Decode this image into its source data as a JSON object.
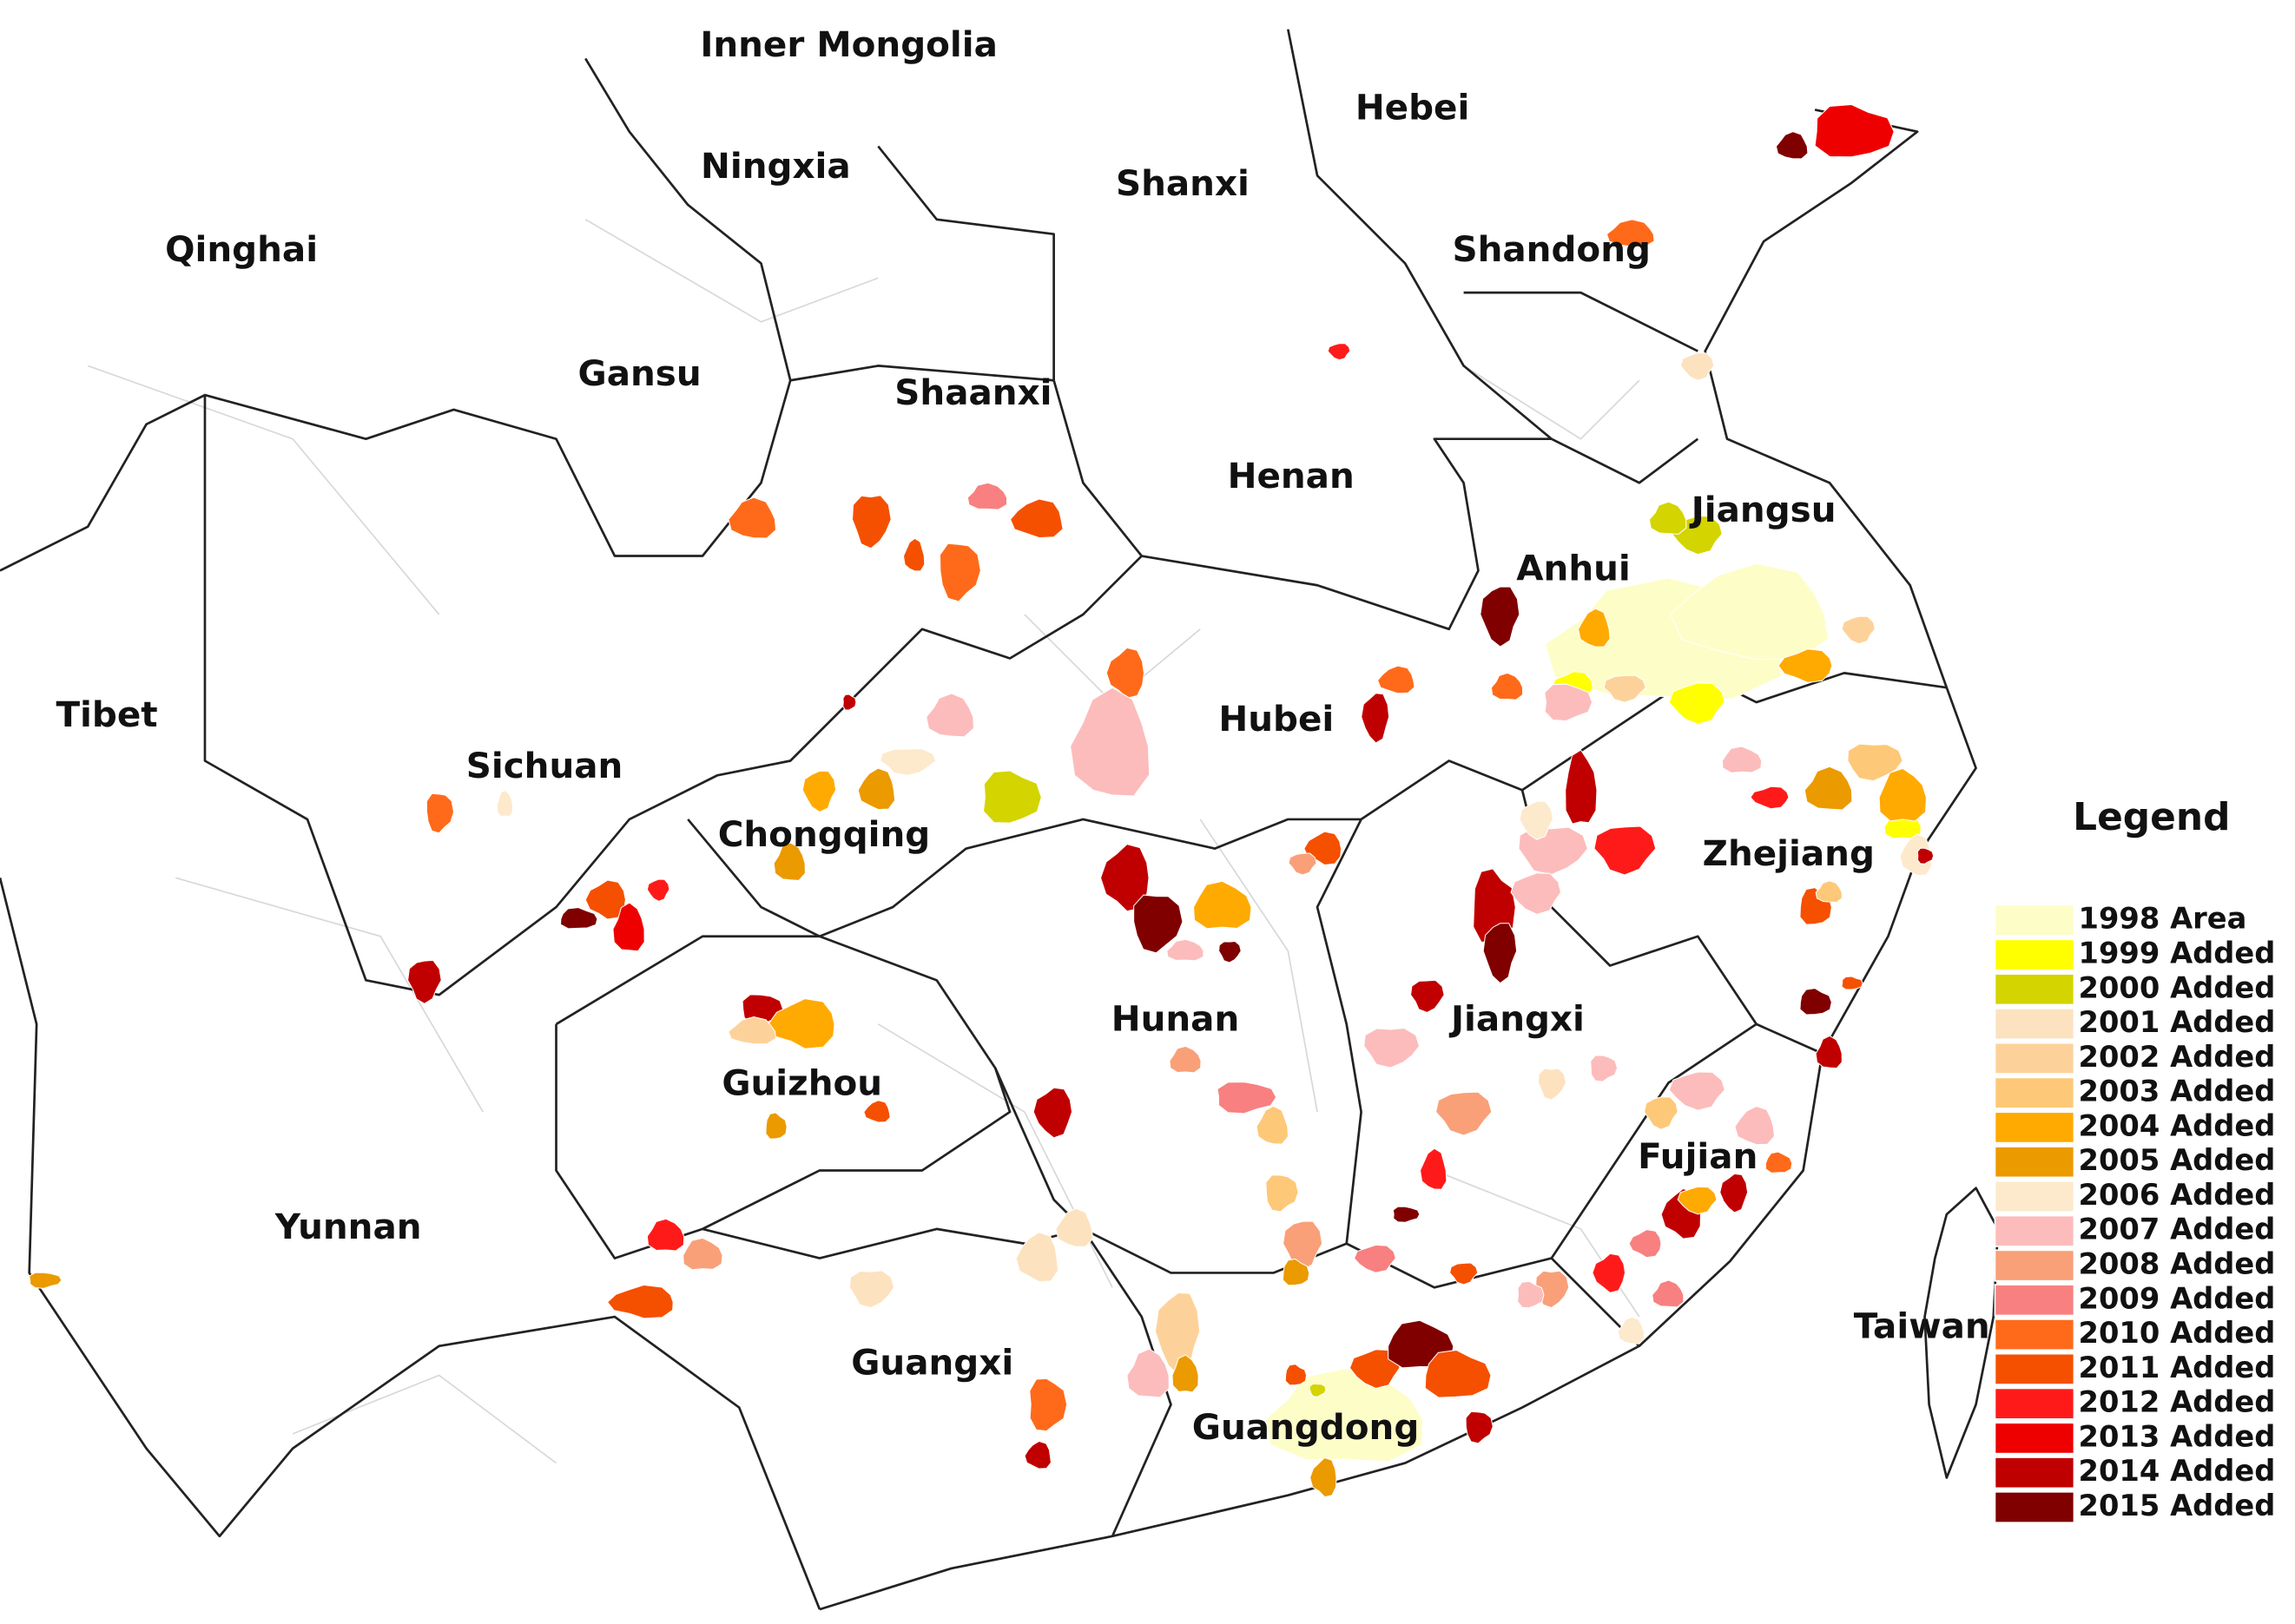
{
  "map": {
    "regions": [
      "Inner Mongolia",
      "Hebei",
      "Ningxia",
      "Shanxi",
      "Qinghai",
      "Shandong",
      "Gansu",
      "Shaanxi",
      "Henan",
      "Jiangsu",
      "Anhui",
      "Tibet",
      "Hubei",
      "Sichuan",
      "Chongqing",
      "Zhejiang",
      "Hunan",
      "Jiangxi",
      "Guizhou",
      "Fujian",
      "Yunnan",
      "Taiwan",
      "Guangxi",
      "Guangdong"
    ],
    "legend": {
      "title": "Legend",
      "items": [
        {
          "name": "1998 Area",
          "color": "#fdfdc8"
        },
        {
          "name": "1999 Added",
          "color": "#ffff00"
        },
        {
          "name": "2000 Added",
          "color": "#d4d400"
        },
        {
          "name": "2001 Added",
          "color": "#fde2c0"
        },
        {
          "name": "2002 Added",
          "color": "#fdd29a"
        },
        {
          "name": "2003 Added",
          "color": "#fdc878"
        },
        {
          "name": "2004 Added",
          "color": "#ffaa00"
        },
        {
          "name": "2005 Added",
          "color": "#eb9a00"
        },
        {
          "name": "2006 Added",
          "color": "#fde9cc"
        },
        {
          "name": "2007 Added",
          "color": "#fcbcbc"
        },
        {
          "name": "2008 Added",
          "color": "#f9a078"
        },
        {
          "name": "2009 Added",
          "color": "#f88080"
        },
        {
          "name": "2010 Added",
          "color": "#ff6a1a"
        },
        {
          "name": "2011 Added",
          "color": "#f55000"
        },
        {
          "name": "2012 Added",
          "color": "#ff1a1a"
        },
        {
          "name": "2013 Added",
          "color": "#ee0000"
        },
        {
          "name": "2014 Added",
          "color": "#c00000"
        },
        {
          "name": "2015 Added",
          "color": "#800000"
        }
      ]
    }
  }
}
